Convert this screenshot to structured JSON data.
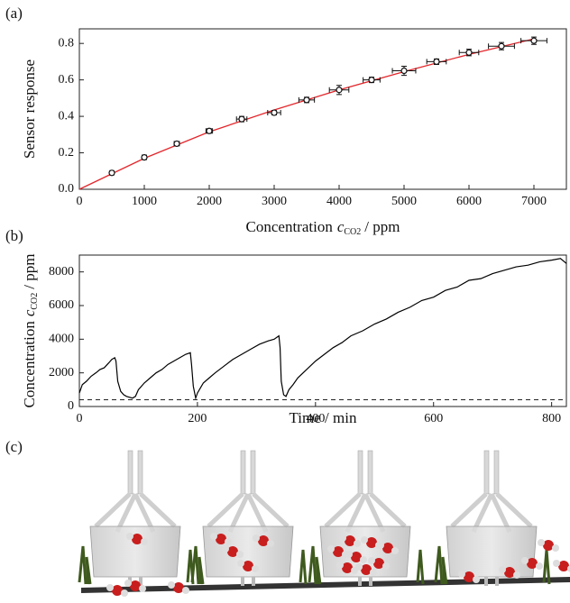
{
  "chart_data": [
    {
      "type": "scatter",
      "panel_label": "(a)",
      "x_label": {
        "text": "Concentration",
        "var": "c",
        "sub": "CO2",
        "unit": "/ ppm"
      },
      "y_label": "Sensor response",
      "xlim": [
        0,
        7500
      ],
      "xticks": [
        0,
        1000,
        2000,
        3000,
        4000,
        5000,
        6000,
        7000
      ],
      "ylim": [
        0,
        0.88
      ],
      "yticks": [
        {
          "value": 0,
          "label": "0.0"
        },
        0.2,
        0.4,
        0.6,
        0.8
      ],
      "points": {
        "color": "#111111",
        "x": [
          500,
          1000,
          1500,
          2000,
          2500,
          3000,
          3500,
          4000,
          4500,
          5000,
          5500,
          6000,
          6500,
          7000
        ],
        "values": [
          0.09,
          0.175,
          0.25,
          0.32,
          0.385,
          0.42,
          0.49,
          0.545,
          0.6,
          0.65,
          0.7,
          0.75,
          0.785,
          0.815
        ],
        "x_err": [
          30,
          30,
          40,
          50,
          80,
          100,
          120,
          150,
          130,
          180,
          150,
          150,
          200,
          200
        ],
        "y_err": [
          0.008,
          0.012,
          0.01,
          0.012,
          0.015,
          0.012,
          0.015,
          0.025,
          0.015,
          0.025,
          0.015,
          0.018,
          0.02,
          0.02
        ]
      },
      "fit": {
        "color": "#e3262b",
        "x": [
          0,
          1000,
          2000,
          3000,
          4000,
          5000,
          6000,
          7000
        ],
        "values": [
          0,
          0.17,
          0.315,
          0.435,
          0.545,
          0.645,
          0.74,
          0.825
        ]
      }
    },
    {
      "type": "line",
      "panel_label": "(b)",
      "x_label": "Time / min",
      "y_label": {
        "text": "Concentration",
        "var": "c",
        "sub": "CO2",
        "unit": "/ ppm"
      },
      "xlim": [
        0,
        825
      ],
      "xticks": [
        0,
        200,
        400,
        600,
        800
      ],
      "ylim": [
        0,
        9000
      ],
      "yticks": [
        0,
        2000,
        4000,
        6000,
        8000
      ],
      "color": "#000000",
      "reference_line": {
        "value": 400,
        "dashed": true
      },
      "x": [
        0,
        5,
        12,
        20,
        28,
        35,
        42,
        50,
        55,
        60,
        62,
        65,
        70,
        75,
        80,
        90,
        95,
        100,
        105,
        110,
        120,
        130,
        140,
        150,
        160,
        170,
        180,
        188,
        190,
        193,
        197,
        200,
        205,
        210,
        220,
        230,
        245,
        260,
        275,
        290,
        305,
        320,
        330,
        338,
        340,
        342,
        346,
        350,
        355,
        362,
        370,
        385,
        400,
        415,
        430,
        445,
        460,
        480,
        500,
        520,
        540,
        560,
        580,
        600,
        620,
        640,
        660,
        680,
        700,
        720,
        740,
        760,
        780,
        800,
        815,
        825
      ],
      "values": [
        800,
        1300,
        1500,
        1800,
        2000,
        2200,
        2300,
        2600,
        2800,
        2900,
        2700,
        1500,
        900,
        700,
        600,
        500,
        600,
        1000,
        1200,
        1400,
        1700,
        2000,
        2200,
        2500,
        2700,
        2900,
        3100,
        3200,
        2500,
        1200,
        500,
        800,
        1100,
        1400,
        1700,
        2000,
        2400,
        2800,
        3100,
        3400,
        3700,
        3900,
        4000,
        4200,
        3500,
        1500,
        700,
        600,
        1000,
        1300,
        1700,
        2200,
        2700,
        3100,
        3500,
        3800,
        4200,
        4500,
        4900,
        5200,
        5600,
        5900,
        6300,
        6500,
        6900,
        7100,
        7500,
        7600,
        7900,
        8100,
        8300,
        8400,
        8600,
        8700,
        8800,
        8500
      ]
    }
  ],
  "panel_c": {
    "label": "(c)"
  }
}
